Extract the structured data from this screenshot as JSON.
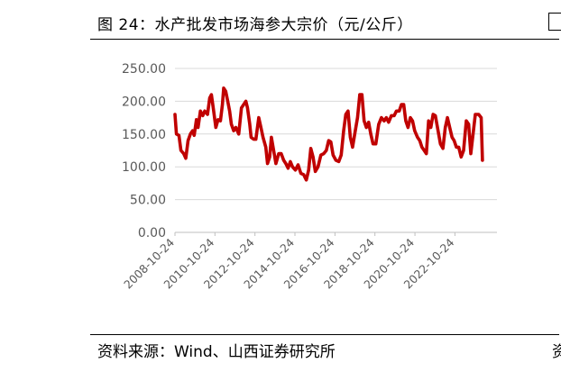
{
  "figure": {
    "caption": "图 24：水产批发市场海参大宗价（元/公斤）",
    "source": "资料来源：Wind、山西证券研究所",
    "right_stub_source_char": "资"
  },
  "chart_data": {
    "type": "line",
    "title": "",
    "xlabel": "",
    "ylabel": "",
    "ylim": [
      0,
      250
    ],
    "y_ticks": [
      "0.00",
      "50.00",
      "100.00",
      "150.00",
      "200.00",
      "250.00"
    ],
    "x_tick_labels": [
      "2008-10-24",
      "2010-10-24",
      "2012-10-24",
      "2014-10-24",
      "2016-10-24",
      "2018-10-24",
      "2020-10-24",
      "2022-10-24"
    ],
    "x_range": [
      "2008-10-24",
      "2024-11-30"
    ],
    "grid": "horizontal",
    "line_color": "#C00000",
    "series": [
      {
        "name": "",
        "points": [
          [
            "2008-10-24",
            180
          ],
          [
            "2008-11-20",
            150
          ],
          [
            "2009-01-05",
            148
          ],
          [
            "2009-02-10",
            125
          ],
          [
            "2009-04-01",
            120
          ],
          [
            "2009-05-10",
            113
          ],
          [
            "2009-06-20",
            140
          ],
          [
            "2009-08-01",
            150
          ],
          [
            "2009-09-10",
            155
          ],
          [
            "2009-10-10",
            148
          ],
          [
            "2009-11-20",
            172
          ],
          [
            "2009-12-20",
            160
          ],
          [
            "2010-02-01",
            185
          ],
          [
            "2010-03-15",
            178
          ],
          [
            "2010-04-20",
            185
          ],
          [
            "2010-06-10",
            180
          ],
          [
            "2010-07-20",
            205
          ],
          [
            "2010-08-20",
            210
          ],
          [
            "2010-10-01",
            185
          ],
          [
            "2010-11-10",
            160
          ],
          [
            "2010-12-20",
            172
          ],
          [
            "2011-02-01",
            170
          ],
          [
            "2011-03-10",
            195
          ],
          [
            "2011-04-01",
            220
          ],
          [
            "2011-05-10",
            215
          ],
          [
            "2011-06-15",
            200
          ],
          [
            "2011-07-20",
            185
          ],
          [
            "2011-08-20",
            165
          ],
          [
            "2011-10-01",
            155
          ],
          [
            "2011-11-10",
            160
          ],
          [
            "2012-01-01",
            150
          ],
          [
            "2012-02-20",
            190
          ],
          [
            "2012-04-01",
            195
          ],
          [
            "2012-05-10",
            200
          ],
          [
            "2012-06-10",
            190
          ],
          [
            "2012-07-20",
            165
          ],
          [
            "2012-08-15",
            145
          ],
          [
            "2012-10-01",
            142
          ],
          [
            "2012-11-10",
            142
          ],
          [
            "2013-01-01",
            175
          ],
          [
            "2013-02-10",
            160
          ],
          [
            "2013-03-20",
            145
          ],
          [
            "2013-05-10",
            130
          ],
          [
            "2013-06-10",
            105
          ],
          [
            "2013-07-20",
            115
          ],
          [
            "2013-08-20",
            145
          ],
          [
            "2013-10-01",
            125
          ],
          [
            "2013-11-10",
            105
          ],
          [
            "2014-01-01",
            120
          ],
          [
            "2014-02-15",
            120
          ],
          [
            "2014-04-01",
            110
          ],
          [
            "2014-05-10",
            105
          ],
          [
            "2014-06-20",
            98
          ],
          [
            "2014-08-01",
            108
          ],
          [
            "2014-09-10",
            100
          ],
          [
            "2014-11-01",
            95
          ],
          [
            "2014-12-20",
            103
          ],
          [
            "2015-02-10",
            90
          ],
          [
            "2015-04-01",
            88
          ],
          [
            "2015-05-20",
            80
          ],
          [
            "2015-07-01",
            95
          ],
          [
            "2015-08-10",
            128
          ],
          [
            "2015-09-20",
            115
          ],
          [
            "2015-11-01",
            93
          ],
          [
            "2015-12-20",
            100
          ],
          [
            "2016-02-10",
            118
          ],
          [
            "2016-04-01",
            120
          ],
          [
            "2016-05-20",
            125
          ],
          [
            "2016-07-01",
            140
          ],
          [
            "2016-08-10",
            138
          ],
          [
            "2016-09-20",
            118
          ],
          [
            "2016-11-10",
            110
          ],
          [
            "2017-01-01",
            108
          ],
          [
            "2017-02-15",
            118
          ],
          [
            "2017-04-01",
            155
          ],
          [
            "2017-05-10",
            180
          ],
          [
            "2017-06-20",
            185
          ],
          [
            "2017-08-01",
            145
          ],
          [
            "2017-09-10",
            130
          ],
          [
            "2017-10-20",
            150
          ],
          [
            "2017-12-10",
            175
          ],
          [
            "2018-01-20",
            210
          ],
          [
            "2018-03-01",
            210
          ],
          [
            "2018-04-10",
            170
          ],
          [
            "2018-05-20",
            160
          ],
          [
            "2018-07-01",
            168
          ],
          [
            "2018-08-10",
            150
          ],
          [
            "2018-09-20",
            135
          ],
          [
            "2018-11-10",
            135
          ],
          [
            "2019-01-01",
            165
          ],
          [
            "2019-02-20",
            175
          ],
          [
            "2019-04-10",
            170
          ],
          [
            "2019-05-20",
            175
          ],
          [
            "2019-07-01",
            168
          ],
          [
            "2019-08-20",
            178
          ],
          [
            "2019-10-10",
            178
          ],
          [
            "2019-11-20",
            185
          ],
          [
            "2020-01-10",
            185
          ],
          [
            "2020-02-20",
            195
          ],
          [
            "2020-04-01",
            195
          ],
          [
            "2020-05-10",
            170
          ],
          [
            "2020-06-20",
            160
          ],
          [
            "2020-08-01",
            175
          ],
          [
            "2020-09-10",
            170
          ],
          [
            "2020-10-20",
            155
          ],
          [
            "2020-12-10",
            145
          ],
          [
            "2021-01-20",
            140
          ],
          [
            "2021-03-01",
            130
          ],
          [
            "2021-04-10",
            125
          ],
          [
            "2021-05-20",
            120
          ],
          [
            "2021-07-01",
            170
          ],
          [
            "2021-08-10",
            160
          ],
          [
            "2021-09-20",
            180
          ],
          [
            "2021-11-01",
            178
          ],
          [
            "2021-12-20",
            155
          ],
          [
            "2022-02-01",
            135
          ],
          [
            "2022-03-20",
            128
          ],
          [
            "2022-05-01",
            160
          ],
          [
            "2022-06-10",
            175
          ],
          [
            "2022-07-20",
            160
          ],
          [
            "2022-09-01",
            145
          ],
          [
            "2022-10-10",
            140
          ],
          [
            "2022-11-20",
            130
          ],
          [
            "2023-01-01",
            130
          ],
          [
            "2023-02-15",
            115
          ],
          [
            "2023-04-01",
            125
          ],
          [
            "2023-05-20",
            170
          ],
          [
            "2023-07-01",
            165
          ],
          [
            "2023-08-10",
            120
          ],
          [
            "2023-09-20",
            150
          ],
          [
            "2023-11-01",
            180
          ],
          [
            "2024-01-01",
            180
          ],
          [
            "2024-02-15",
            175
          ],
          [
            "2024-03-10",
            110
          ]
        ]
      }
    ]
  }
}
